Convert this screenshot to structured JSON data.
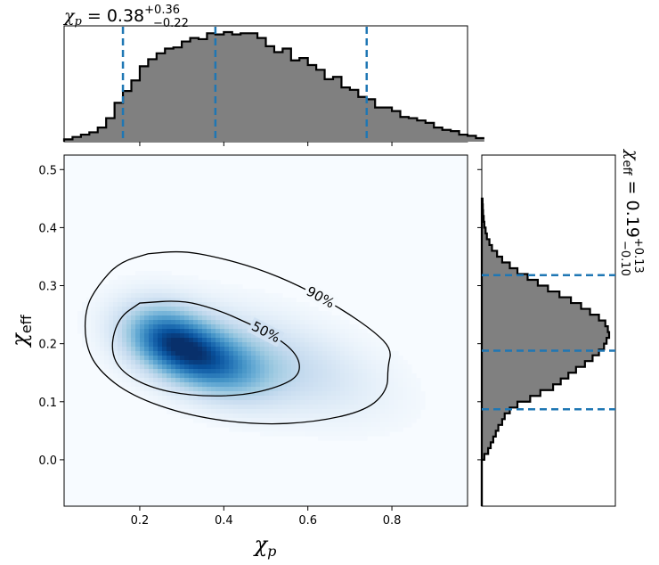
{
  "chart_data": {
    "type": "corner",
    "joint": {
      "type": "heatmap",
      "x": {
        "label": "χp",
        "lim": [
          0.02,
          0.98
        ],
        "ticks": [
          "0.2",
          "0.4",
          "0.6",
          "0.8"
        ]
      },
      "y": {
        "label": "χeff",
        "lim": [
          -0.08,
          0.525
        ],
        "ticks": [
          "0.0",
          "0.1",
          "0.2",
          "0.3",
          "0.4",
          "0.5"
        ]
      },
      "density_peak": [
        0.35,
        0.17
      ],
      "contours": [
        {
          "label": "90%",
          "path": [
            [
              0.22,
              0.355
            ],
            [
              0.3,
              0.36
            ],
            [
              0.38,
              0.35
            ],
            [
              0.48,
              0.33
            ],
            [
              0.58,
              0.3
            ],
            [
              0.68,
              0.26
            ],
            [
              0.76,
              0.22
            ],
            [
              0.8,
              0.19
            ],
            [
              0.79,
              0.16
            ],
            [
              0.79,
              0.12
            ],
            [
              0.74,
              0.085
            ],
            [
              0.62,
              0.065
            ],
            [
              0.48,
              0.06
            ],
            [
              0.32,
              0.075
            ],
            [
              0.18,
              0.11
            ],
            [
              0.1,
              0.155
            ],
            [
              0.07,
              0.2
            ],
            [
              0.07,
              0.26
            ],
            [
              0.1,
              0.3
            ],
            [
              0.15,
              0.34
            ],
            [
              0.22,
              0.355
            ]
          ]
        },
        {
          "label": "50%",
          "path": [
            [
              0.2,
              0.27
            ],
            [
              0.3,
              0.275
            ],
            [
              0.38,
              0.26
            ],
            [
              0.46,
              0.235
            ],
            [
              0.54,
              0.205
            ],
            [
              0.58,
              0.175
            ],
            [
              0.58,
              0.145
            ],
            [
              0.53,
              0.125
            ],
            [
              0.44,
              0.11
            ],
            [
              0.32,
              0.11
            ],
            [
              0.22,
              0.125
            ],
            [
              0.15,
              0.155
            ],
            [
              0.13,
              0.195
            ],
            [
              0.15,
              0.245
            ],
            [
              0.2,
              0.27
            ]
          ]
        }
      ]
    },
    "xp_marginal": {
      "title_value": "0.38",
      "title_plus": "+0.36",
      "title_minus": "−0.22",
      "quantiles": [
        0.16,
        0.38,
        0.74
      ],
      "bin_start": 0.02,
      "bin_width": 0.02,
      "counts": [
        0.02,
        0.04,
        0.06,
        0.08,
        0.12,
        0.2,
        0.33,
        0.43,
        0.52,
        0.64,
        0.7,
        0.75,
        0.79,
        0.8,
        0.85,
        0.88,
        0.87,
        0.92,
        0.91,
        0.93,
        0.91,
        0.92,
        0.92,
        0.88,
        0.81,
        0.76,
        0.79,
        0.69,
        0.71,
        0.65,
        0.61,
        0.53,
        0.55,
        0.46,
        0.44,
        0.38,
        0.36,
        0.29,
        0.29,
        0.26,
        0.21,
        0.2,
        0.18,
        0.16,
        0.12,
        0.1,
        0.09,
        0.06,
        0.05,
        0.03
      ]
    },
    "xeff_marginal": {
      "title_value": "0.19",
      "title_plus": "+0.13",
      "title_minus": "−0.10",
      "quantiles": [
        0.087,
        0.188,
        0.318
      ],
      "bin_start": 0.0,
      "bin_width": 0.01,
      "counts": [
        0.02,
        0.05,
        0.07,
        0.09,
        0.11,
        0.13,
        0.16,
        0.18,
        0.22,
        0.28,
        0.38,
        0.46,
        0.56,
        0.62,
        0.68,
        0.74,
        0.81,
        0.87,
        0.92,
        0.96,
        0.98,
        1.0,
        0.99,
        0.97,
        0.92,
        0.85,
        0.78,
        0.7,
        0.61,
        0.52,
        0.44,
        0.36,
        0.28,
        0.22,
        0.16,
        0.12,
        0.08,
        0.06,
        0.04,
        0.03,
        0.02,
        0.015,
        0.01,
        0.008,
        0.006
      ]
    }
  }
}
